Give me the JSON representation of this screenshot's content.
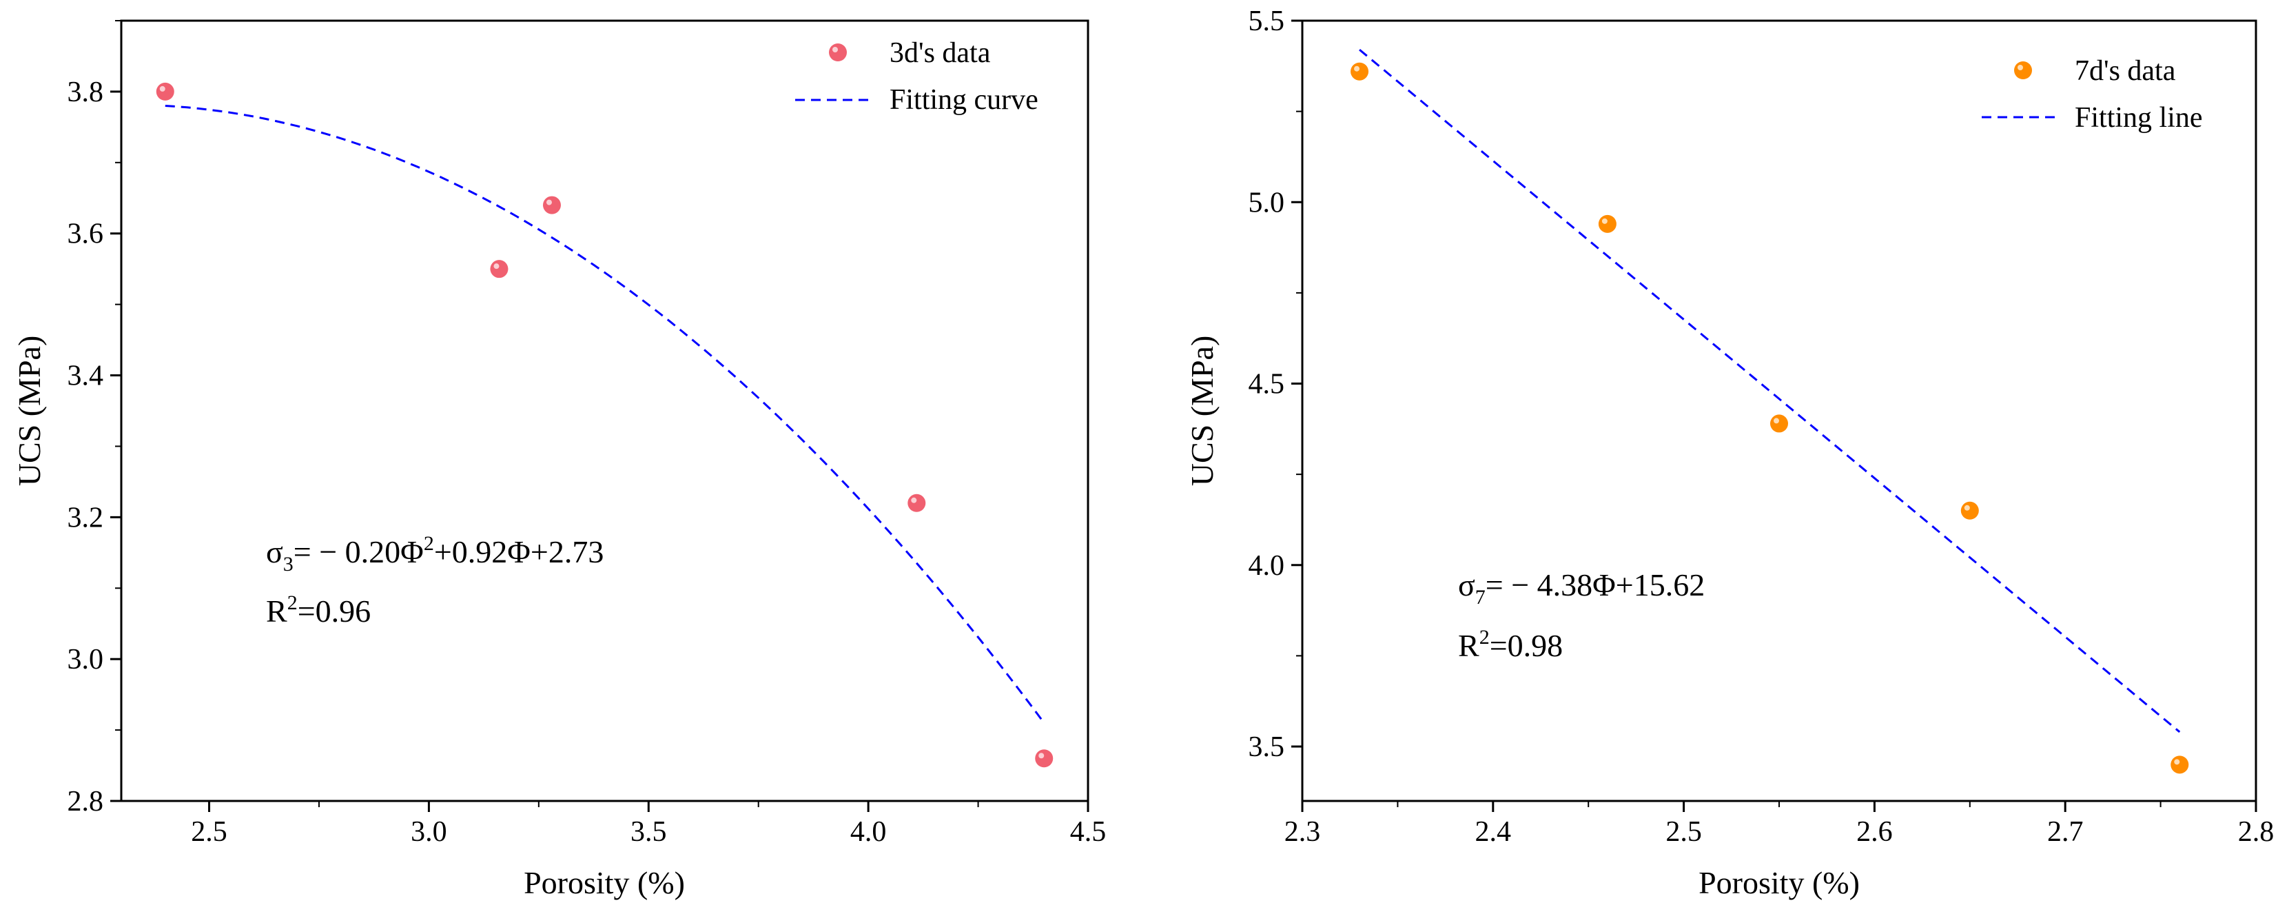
{
  "chart_data": [
    {
      "type": "scatter",
      "xlabel": "Porosity (%)",
      "ylabel": "UCS (MPa)",
      "xlim": [
        2.3,
        4.5
      ],
      "ylim": [
        2.8,
        3.9
      ],
      "xticks": [
        2.5,
        3.0,
        3.5,
        4.0,
        4.5
      ],
      "xtick_labels": [
        "2.5",
        "3.0",
        "3.5",
        "4.0",
        "4.5"
      ],
      "yticks": [
        2.8,
        3.0,
        3.2,
        3.4,
        3.6,
        3.8
      ],
      "ytick_labels": [
        "2.8",
        "3.0",
        "3.2",
        "3.4",
        "3.6",
        "3.8"
      ],
      "series": [
        {
          "name": "3d's data",
          "kind": "points",
          "color": "#f06070",
          "x": [
            2.4,
            3.16,
            3.28,
            4.11,
            4.4
          ],
          "y": [
            3.8,
            3.55,
            3.64,
            3.22,
            2.86
          ]
        },
        {
          "name": "Fitting curve",
          "kind": "fit",
          "color": "#0000ff",
          "fit": "quadratic",
          "coefficients": [
            -0.2,
            0.92,
            2.73
          ],
          "x_range": [
            2.4,
            4.4
          ],
          "y_start": 3.78,
          "y_end": 2.91
        }
      ],
      "legend_location": "top-right",
      "annotation": {
        "equation_prefix": "σ",
        "equation_sub": "3",
        "equation_body": "= − 0.20Φ",
        "equation_sup": "2",
        "equation_tail": "+0.92Φ+2.73",
        "r2_prefix": "R",
        "r2_sup": "2",
        "r2_value": "=0.96"
      }
    },
    {
      "type": "scatter",
      "xlabel": "Porosity (%)",
      "ylabel": "UCS (MPa)",
      "xlim": [
        2.3,
        2.8
      ],
      "ylim": [
        3.35,
        5.5
      ],
      "xticks": [
        2.3,
        2.4,
        2.5,
        2.6,
        2.7,
        2.8
      ],
      "xtick_labels": [
        "2.3",
        "2.4",
        "2.5",
        "2.6",
        "2.7",
        "2.8"
      ],
      "yticks": [
        3.5,
        4.0,
        4.5,
        5.0,
        5.5
      ],
      "ytick_labels": [
        "3.5",
        "4.0",
        "4.5",
        "5.0",
        "5.5"
      ],
      "series": [
        {
          "name": "7d's data",
          "kind": "points",
          "color": "#ff8c00",
          "x": [
            2.33,
            2.46,
            2.55,
            2.65,
            2.76
          ],
          "y": [
            5.36,
            4.94,
            4.39,
            4.15,
            3.45
          ]
        },
        {
          "name": "Fitting line",
          "kind": "fit",
          "color": "#0000ff",
          "fit": "linear",
          "coefficients": [
            -4.38,
            15.62
          ],
          "x_range": [
            2.33,
            2.76
          ],
          "y_start": 5.42,
          "y_end": 3.54
        }
      ],
      "legend_location": "top-right",
      "annotation": {
        "equation_prefix": "σ",
        "equation_sub": "7",
        "equation_body": "= − 4.38Φ+15.62",
        "r2_prefix": "R",
        "r2_sup": "2",
        "r2_value": "=0.98"
      }
    }
  ]
}
